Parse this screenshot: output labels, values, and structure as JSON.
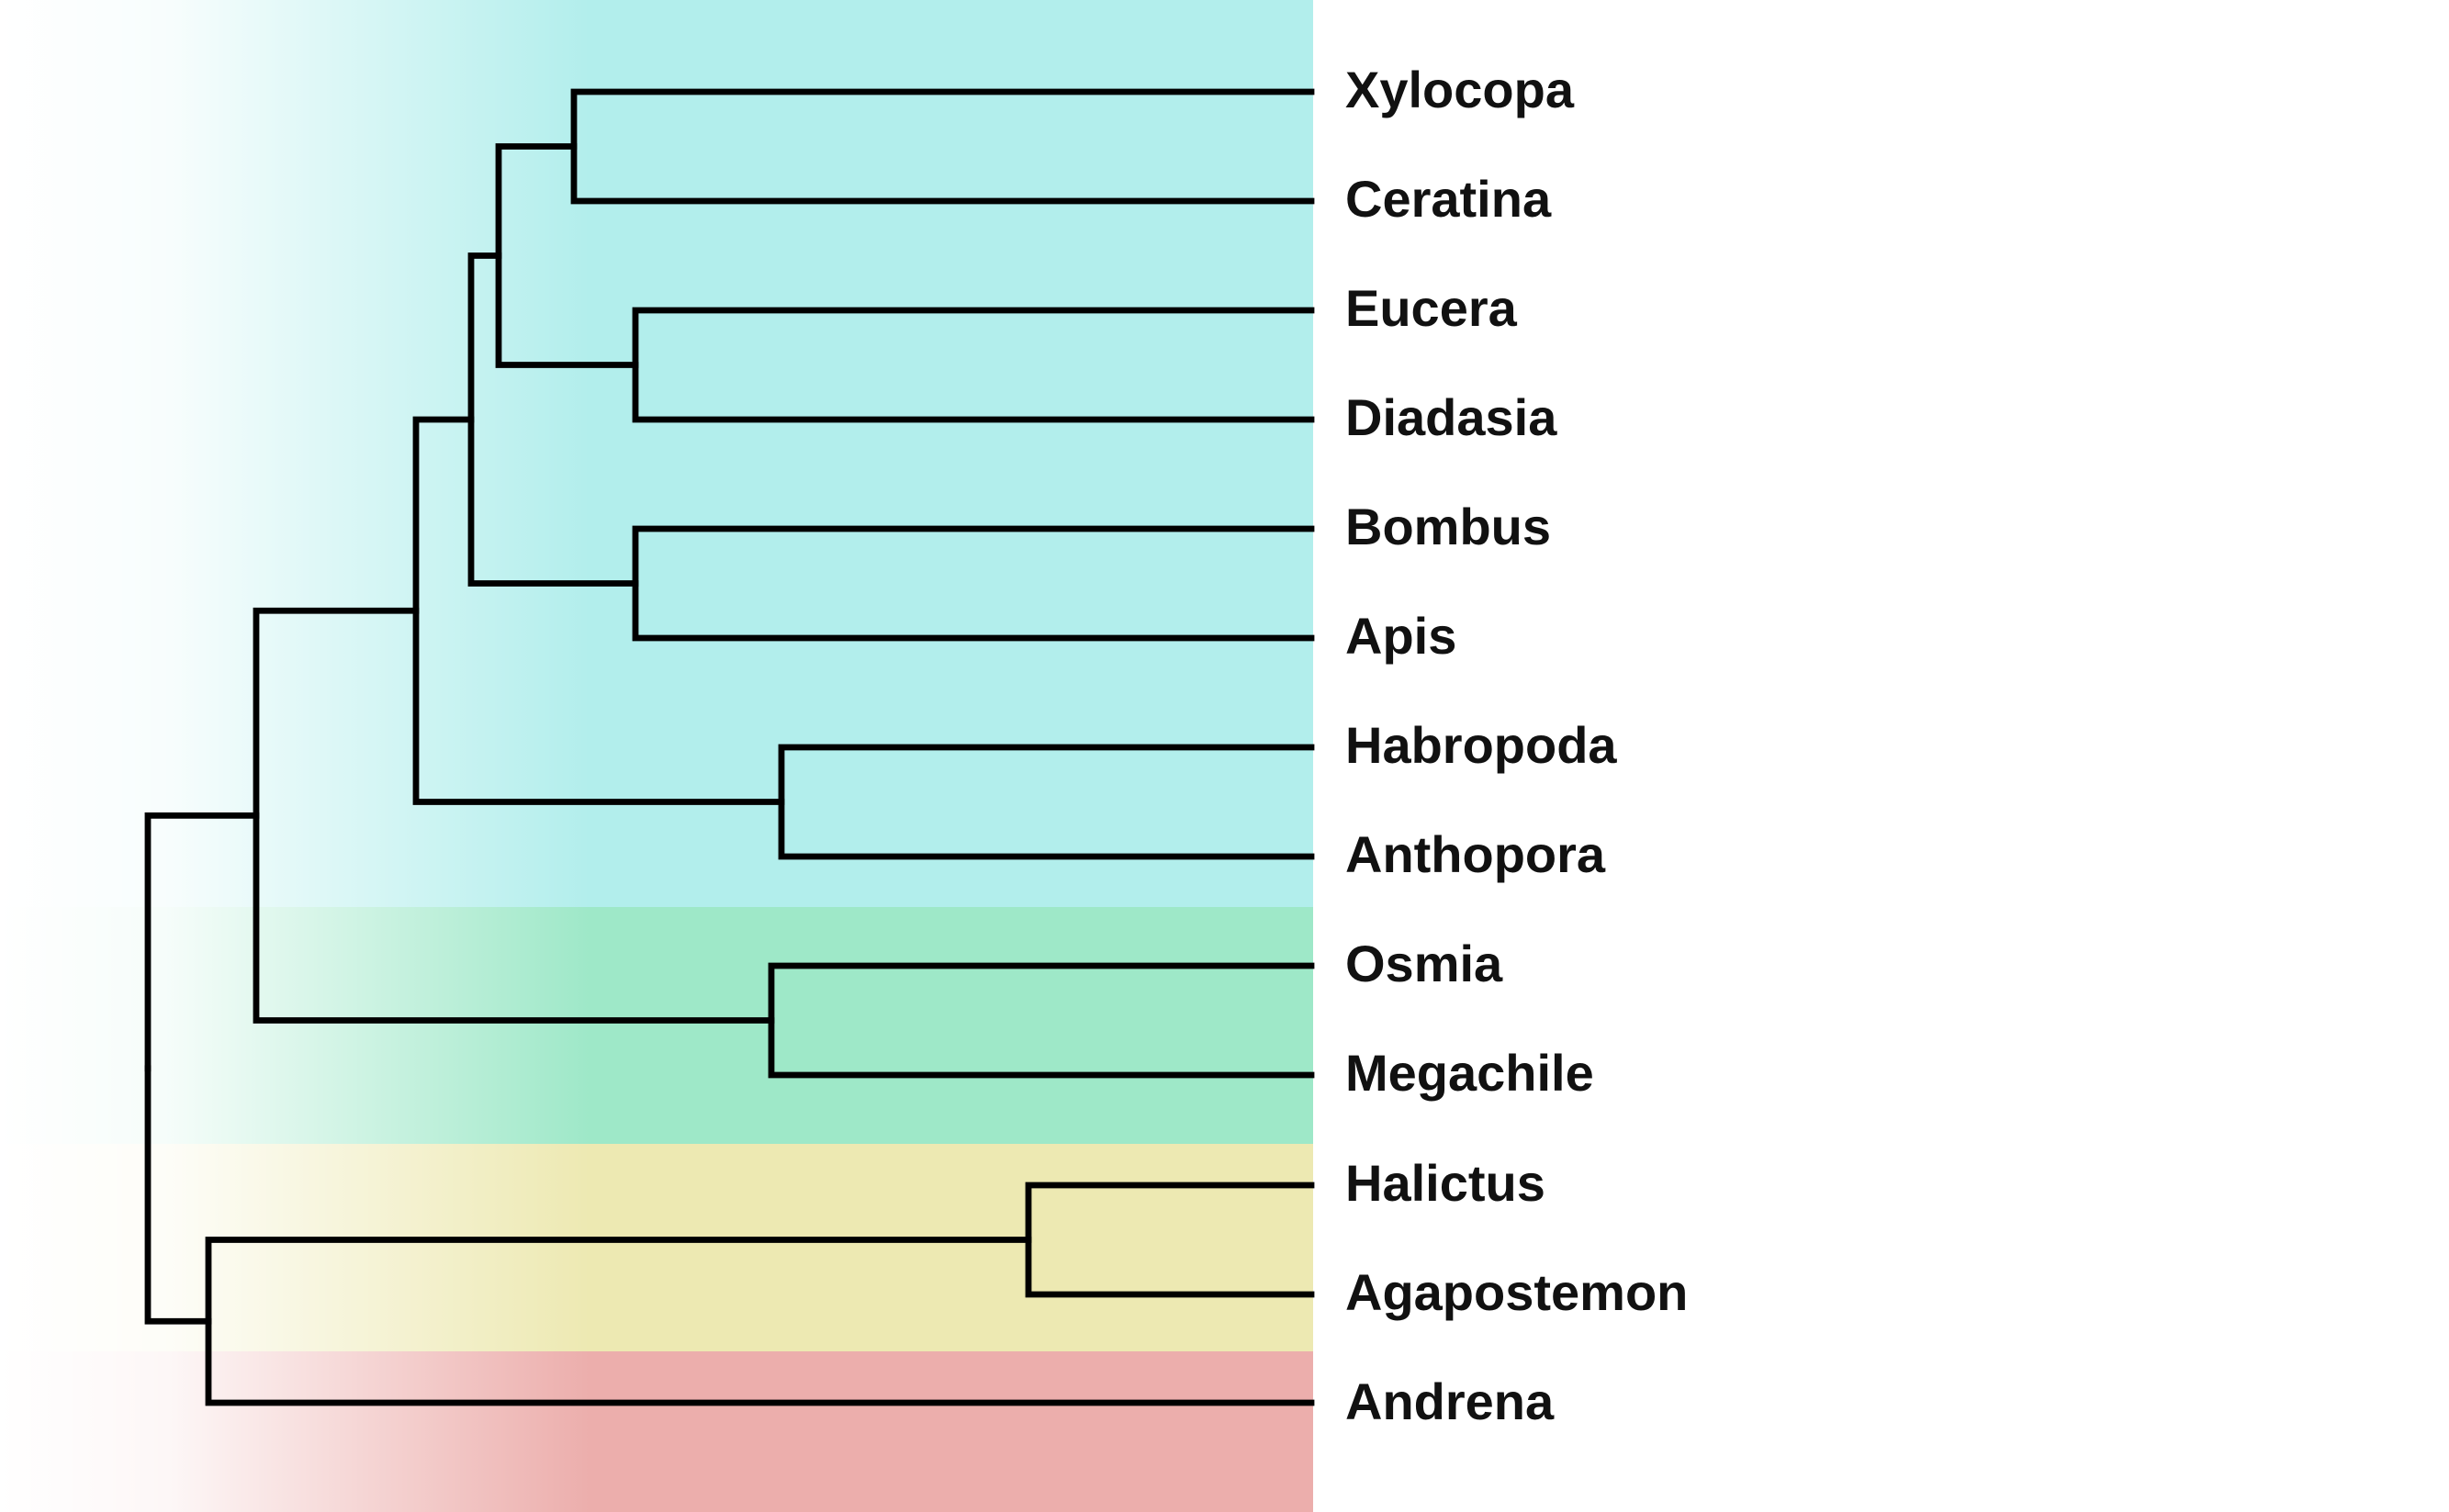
{
  "tree": {
    "newick": "(((((((Xylocopa,Ceratina),(Eucera,Diadasia)),(Bombus,Apis)),(Habropoda,Anthopora)),(Osmia,Megachile)),((Halictus,Agapostemon),Andrena));",
    "taxa": [
      {
        "id": "xylocopa",
        "label": "Xylocopa",
        "group": "cyan"
      },
      {
        "id": "ceratina",
        "label": "Ceratina",
        "group": "cyan"
      },
      {
        "id": "eucera",
        "label": "Eucera",
        "group": "cyan"
      },
      {
        "id": "diadasia",
        "label": "Diadasia",
        "group": "cyan"
      },
      {
        "id": "bombus",
        "label": "Bombus",
        "group": "cyan"
      },
      {
        "id": "apis",
        "label": "Apis",
        "group": "cyan"
      },
      {
        "id": "habropoda",
        "label": "Habropoda",
        "group": "cyan"
      },
      {
        "id": "anthopora",
        "label": "Anthopora",
        "group": "cyan"
      },
      {
        "id": "osmia",
        "label": "Osmia",
        "group": "green"
      },
      {
        "id": "megachile",
        "label": "Megachile",
        "group": "green"
      },
      {
        "id": "halictus",
        "label": "Halictus",
        "group": "yellow"
      },
      {
        "id": "agapostemon",
        "label": "Agapostemon",
        "group": "yellow"
      },
      {
        "id": "andrena",
        "label": "Andrena",
        "group": "red"
      }
    ]
  },
  "group_colors": {
    "cyan": "#b2eeec",
    "green": "#9ee8c8",
    "yellow": "#ede9b2",
    "red": "#ecaeac"
  },
  "line_color": "#000000"
}
